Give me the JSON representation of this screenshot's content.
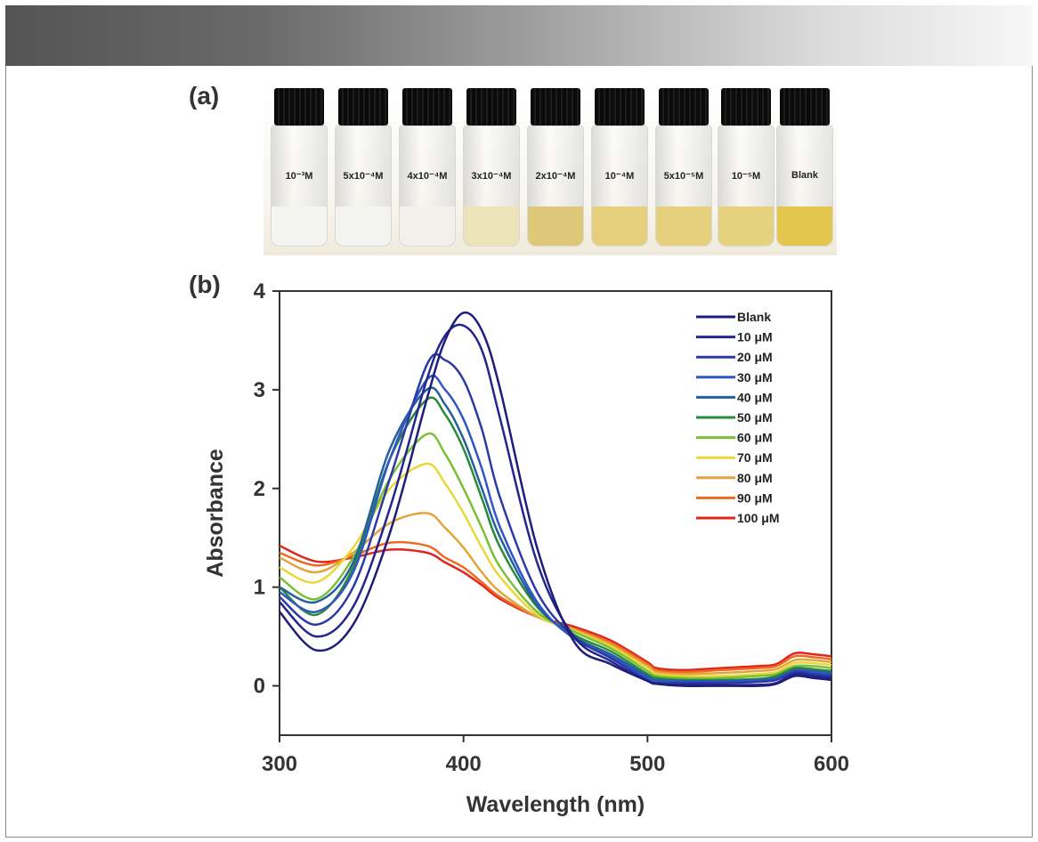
{
  "panel_a": {
    "label": "(a)",
    "vials": [
      {
        "label": "10⁻³M",
        "liquid": "#f4f4f0"
      },
      {
        "label": "5x10⁻⁴M",
        "liquid": "#f3f3ef"
      },
      {
        "label": "4x10⁻⁴M",
        "liquid": "#f1f0ea"
      },
      {
        "label": "3x10⁻⁴M",
        "liquid": "#ece3b8"
      },
      {
        "label": "2x10⁻⁴M",
        "liquid": "#dfc77a"
      },
      {
        "label": "10⁻⁴M",
        "liquid": "#e6cf7c"
      },
      {
        "label": "5x10⁻⁵M",
        "liquid": "#e6d07e"
      },
      {
        "label": "10⁻⁵M",
        "liquid": "#e6d17e"
      },
      {
        "label": "Blank",
        "liquid": "#e4c64e"
      }
    ]
  },
  "panel_b": {
    "label": "(b)"
  },
  "chart_data": {
    "type": "line",
    "title": "",
    "xlabel": "Wavelength (nm)",
    "ylabel": "Absorbance",
    "xlim": [
      300,
      600
    ],
    "ylim": [
      -0.5,
      4
    ],
    "xticks": [
      300,
      400,
      500,
      600
    ],
    "yticks": [
      0,
      1,
      2,
      3,
      4
    ],
    "grid": false,
    "legend_position": "top-right",
    "series": [
      {
        "name": "Blank",
        "color": "#1e1e7a",
        "x": [
          300,
          320,
          340,
          360,
          380,
          390,
          400,
          410,
          420,
          440,
          460,
          480,
          500,
          505,
          520,
          540,
          560,
          570,
          580,
          590,
          600
        ],
        "y": [
          0.75,
          0.36,
          0.62,
          1.55,
          2.9,
          3.5,
          3.78,
          3.6,
          3.0,
          1.4,
          0.45,
          0.22,
          0.05,
          0.02,
          0.0,
          0.0,
          0.0,
          0.02,
          0.1,
          0.08,
          0.06
        ]
      },
      {
        "name": "10 μM",
        "color": "#25258e",
        "x": [
          300,
          320,
          340,
          360,
          380,
          390,
          400,
          410,
          420,
          440,
          460,
          480,
          500,
          505,
          520,
          540,
          560,
          570,
          580,
          590,
          600
        ],
        "y": [
          0.85,
          0.5,
          0.8,
          1.8,
          3.1,
          3.55,
          3.65,
          3.4,
          2.7,
          1.25,
          0.5,
          0.25,
          0.05,
          0.02,
          0.01,
          0.01,
          0.01,
          0.03,
          0.12,
          0.1,
          0.08
        ]
      },
      {
        "name": "20 μM",
        "color": "#2c3aa6",
        "x": [
          300,
          320,
          340,
          360,
          380,
          390,
          400,
          410,
          420,
          440,
          460,
          480,
          500,
          505,
          520,
          540,
          560,
          570,
          580,
          590,
          600
        ],
        "y": [
          0.9,
          0.62,
          1.0,
          2.1,
          3.25,
          3.3,
          3.1,
          2.6,
          1.9,
          0.95,
          0.5,
          0.28,
          0.06,
          0.03,
          0.03,
          0.03,
          0.04,
          0.06,
          0.14,
          0.12,
          0.1
        ]
      },
      {
        "name": "30 μM",
        "color": "#2f56c2",
        "x": [
          300,
          320,
          340,
          360,
          380,
          390,
          400,
          410,
          420,
          440,
          460,
          480,
          500,
          505,
          520,
          540,
          560,
          570,
          580,
          590,
          600
        ],
        "y": [
          0.95,
          0.75,
          1.15,
          2.3,
          3.1,
          3.0,
          2.7,
          2.2,
          1.6,
          0.85,
          0.48,
          0.3,
          0.08,
          0.05,
          0.04,
          0.04,
          0.05,
          0.07,
          0.15,
          0.14,
          0.12
        ]
      },
      {
        "name": "40 μM",
        "color": "#26609c",
        "x": [
          300,
          320,
          340,
          360,
          380,
          390,
          400,
          410,
          420,
          440,
          460,
          480,
          500,
          505,
          520,
          540,
          560,
          570,
          580,
          590,
          600
        ],
        "y": [
          1.0,
          0.85,
          1.25,
          2.4,
          3.0,
          2.85,
          2.5,
          2.0,
          1.5,
          0.82,
          0.5,
          0.32,
          0.1,
          0.06,
          0.05,
          0.05,
          0.06,
          0.08,
          0.16,
          0.15,
          0.13
        ]
      },
      {
        "name": "50 μM",
        "color": "#2a8a3a",
        "x": [
          300,
          320,
          340,
          360,
          380,
          390,
          400,
          410,
          420,
          440,
          460,
          480,
          500,
          505,
          520,
          540,
          560,
          570,
          580,
          590,
          600
        ],
        "y": [
          1.0,
          0.72,
          1.2,
          2.3,
          2.9,
          2.75,
          2.4,
          1.9,
          1.4,
          0.8,
          0.52,
          0.35,
          0.12,
          0.08,
          0.06,
          0.06,
          0.07,
          0.1,
          0.18,
          0.17,
          0.15
        ]
      },
      {
        "name": "60 μM",
        "color": "#7ac036",
        "x": [
          300,
          320,
          340,
          360,
          380,
          390,
          400,
          410,
          420,
          440,
          460,
          480,
          500,
          505,
          520,
          540,
          560,
          570,
          580,
          590,
          600
        ],
        "y": [
          1.1,
          0.88,
          1.3,
          2.1,
          2.55,
          2.35,
          2.0,
          1.6,
          1.2,
          0.75,
          0.55,
          0.38,
          0.15,
          0.1,
          0.08,
          0.08,
          0.1,
          0.12,
          0.2,
          0.2,
          0.18
        ]
      },
      {
        "name": "70 μM",
        "color": "#e8d83a",
        "x": [
          300,
          320,
          340,
          360,
          380,
          390,
          400,
          410,
          420,
          440,
          460,
          480,
          500,
          505,
          520,
          540,
          560,
          570,
          580,
          590,
          600
        ],
        "y": [
          1.2,
          1.05,
          1.4,
          2.0,
          2.25,
          2.05,
          1.75,
          1.4,
          1.1,
          0.72,
          0.56,
          0.4,
          0.18,
          0.12,
          0.1,
          0.1,
          0.12,
          0.14,
          0.23,
          0.23,
          0.21
        ]
      },
      {
        "name": "80 μM",
        "color": "#e2a43c",
        "x": [
          300,
          320,
          340,
          360,
          380,
          390,
          400,
          410,
          420,
          440,
          460,
          480,
          500,
          505,
          520,
          540,
          560,
          570,
          580,
          590,
          600
        ],
        "y": [
          1.3,
          1.15,
          1.35,
          1.65,
          1.75,
          1.6,
          1.4,
          1.15,
          0.95,
          0.7,
          0.57,
          0.42,
          0.2,
          0.14,
          0.12,
          0.13,
          0.15,
          0.17,
          0.26,
          0.26,
          0.24
        ]
      },
      {
        "name": "90 μM",
        "color": "#ee6a22",
        "x": [
          300,
          320,
          340,
          360,
          380,
          390,
          400,
          410,
          420,
          440,
          460,
          480,
          500,
          505,
          520,
          540,
          560,
          570,
          580,
          590,
          600
        ],
        "y": [
          1.35,
          1.22,
          1.32,
          1.45,
          1.42,
          1.3,
          1.2,
          1.05,
          0.9,
          0.7,
          0.58,
          0.44,
          0.22,
          0.16,
          0.14,
          0.16,
          0.18,
          0.2,
          0.3,
          0.29,
          0.27
        ]
      },
      {
        "name": "100 μM",
        "color": "#e0261e",
        "x": [
          300,
          320,
          340,
          360,
          380,
          390,
          400,
          410,
          420,
          440,
          460,
          480,
          500,
          505,
          520,
          540,
          560,
          570,
          580,
          590,
          600
        ],
        "y": [
          1.42,
          1.26,
          1.3,
          1.38,
          1.35,
          1.25,
          1.15,
          1.02,
          0.88,
          0.7,
          0.6,
          0.46,
          0.24,
          0.18,
          0.16,
          0.18,
          0.2,
          0.22,
          0.33,
          0.32,
          0.3
        ]
      }
    ]
  }
}
